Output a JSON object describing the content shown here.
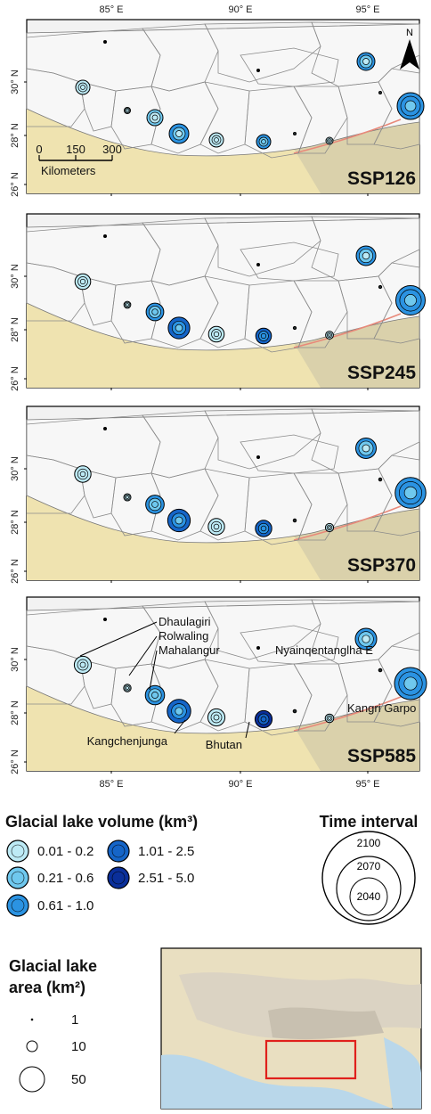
{
  "map": {
    "longitude_ticks": [
      "85° E",
      "90° E",
      "95° E"
    ],
    "latitude_ticks": [
      "30° N",
      "28° N",
      "26° N"
    ],
    "north_arrow_label": "N",
    "scale_bar": {
      "ticks": [
        "0",
        "150",
        "300"
      ],
      "unit": "Kilometers"
    }
  },
  "panels": [
    {
      "scenario": "SSP126"
    },
    {
      "scenario": "SSP245"
    },
    {
      "scenario": "SSP370"
    },
    {
      "scenario": "SSP585"
    }
  ],
  "region_labels": {
    "dhaulagiri": "Dhaulagiri",
    "rolwaling": "Rolwaling",
    "mahalangur": "Mahalangur",
    "kangchenjunga": "Kangchenjunga",
    "bhutan": "Bhutan",
    "nyainqentanglha": "Nyainqentanglha E",
    "kangri_garpo": "Kangri Garpo"
  },
  "legend_volume": {
    "title": "Glacial lake volume (km³)",
    "classes": [
      {
        "label": "0.01 - 0.2",
        "color": "#bdeaf5"
      },
      {
        "label": "0.21 - 0.6",
        "color": "#6fc8ee"
      },
      {
        "label": "0.61 - 1.0",
        "color": "#2b93e2"
      },
      {
        "label": "1.01 - 2.5",
        "color": "#1565c8"
      },
      {
        "label": "2.51 - 5.0",
        "color": "#0a2f9a"
      }
    ]
  },
  "legend_time": {
    "title": "Time interval",
    "labels": [
      "2100",
      "2070",
      "2040"
    ]
  },
  "legend_area": {
    "title_line1": "Glacial lake",
    "title_line2": "area (km²)",
    "values": [
      "1",
      "10",
      "50"
    ]
  },
  "colors": {
    "land": "#f2f2f2",
    "plain": "#efe3b0",
    "border_highlight": "#e8897a",
    "inset_box": "#e0201c"
  }
}
